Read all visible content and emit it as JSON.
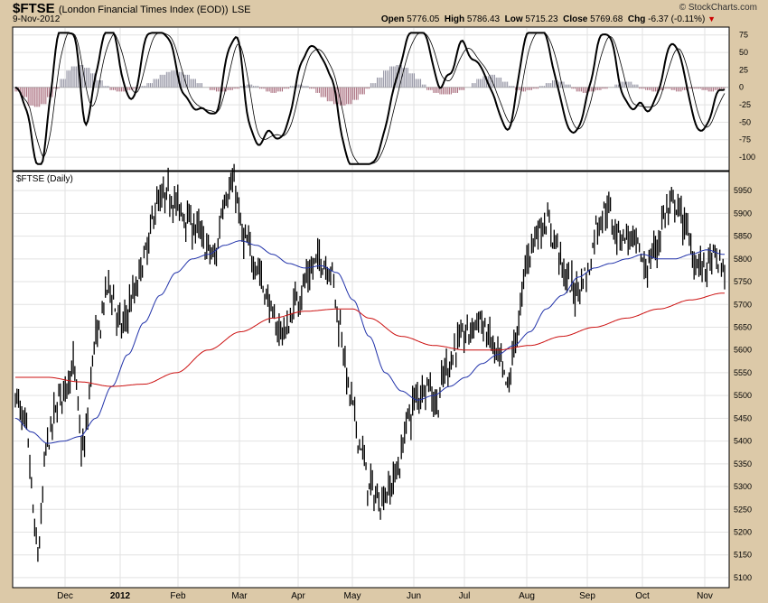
{
  "header": {
    "symbol": "$FTSE",
    "name": "(London Financial Times Index (EOD))",
    "exchange": "LSE",
    "date": "9-Nov-2012",
    "open_label": "Open",
    "open_value": "5776.05",
    "high_label": "High",
    "high_value": "5786.43",
    "low_label": "Low",
    "low_value": "5715.23",
    "close_label": "Close",
    "close_value": "5769.68",
    "chg_label": "Chg",
    "chg_value": "-6.37 (-0.11%)",
    "brand": "© StockCharts.com"
  },
  "colors": {
    "background": "#dcc9a8",
    "panel": "#ffffff",
    "price_bars": "#000000",
    "ma50": "#2233aa",
    "ma200": "#cc1111",
    "hist_positive": "#8f8f9f",
    "hist_negative": "#a86c7c"
  },
  "chart_data": [
    {
      "type": "line",
      "panel": "indicator",
      "yticks": [
        75,
        50,
        25,
        0,
        -25,
        -50,
        -75,
        -100
      ],
      "ylim": [
        -118,
        85
      ],
      "grid": true,
      "series": [],
      "histogram": [
        -6,
        -14,
        -26,
        -28,
        -24,
        -14,
        -2,
        12,
        24,
        30,
        32,
        28,
        20,
        10,
        2,
        -4,
        -6,
        -6,
        -4,
        -2,
        2,
        6,
        12,
        18,
        22,
        24,
        22,
        18,
        12,
        6,
        0,
        -4,
        -6,
        -6,
        -4,
        -2,
        2,
        4,
        2,
        -2,
        -6,
        -8,
        -6,
        -2,
        2,
        4,
        2,
        -2,
        -8,
        -14,
        -20,
        -24,
        -26,
        -24,
        -18,
        -10,
        -2,
        6,
        14,
        24,
        30,
        32,
        28,
        20,
        12,
        4,
        -4,
        -8,
        -10,
        -10,
        -8,
        -4,
        0,
        6,
        12,
        16,
        18,
        14,
        8,
        2,
        -4,
        -6,
        -4,
        -2,
        2,
        6,
        10,
        8,
        4,
        -2,
        -6,
        -8,
        -6,
        -4,
        -2,
        0,
        4,
        8,
        8,
        4,
        -2,
        -4,
        -6,
        -4,
        -2,
        -4,
        -6,
        -4,
        -2,
        -2,
        -4,
        -6,
        -4,
        -2
      ]
    },
    {
      "type": "bar",
      "panel": "price",
      "title": "$FTSE (Daily)",
      "x": [
        "Dec",
        "2012",
        "Feb",
        "Mar",
        "Apr",
        "May",
        "Jun",
        "Jul",
        "Aug",
        "Sep",
        "Oct",
        "Nov"
      ],
      "yticks": [
        5950,
        5900,
        5850,
        5800,
        5750,
        5700,
        5650,
        5600,
        5550,
        5500,
        5450,
        5400,
        5350,
        5300,
        5250,
        5200,
        5150,
        5100
      ],
      "ylim": [
        5080,
        5990
      ],
      "grid": true,
      "series": [
        {
          "anchors": [
            [
              0,
              5500
            ],
            [
              6,
              5430
            ],
            [
              14,
              5160
            ],
            [
              20,
              5400
            ],
            [
              28,
              5500
            ],
            [
              36,
              5560
            ],
            [
              42,
              5380
            ],
            [
              50,
              5620
            ],
            [
              58,
              5740
            ],
            [
              66,
              5650
            ],
            [
              74,
              5720
            ],
            [
              80,
              5800
            ],
            [
              88,
              5920
            ],
            [
              96,
              5940
            ],
            [
              104,
              5900
            ],
            [
              112,
              5870
            ],
            [
              120,
              5820
            ],
            [
              124,
              5800
            ],
            [
              130,
              5940
            ],
            [
              136,
              5960
            ],
            [
              142,
              5840
            ],
            [
              150,
              5790
            ],
            [
              156,
              5720
            ],
            [
              162,
              5650
            ],
            [
              168,
              5640
            ],
            [
              176,
              5720
            ],
            [
              182,
              5760
            ],
            [
              188,
              5800
            ],
            [
              196,
              5780
            ],
            [
              202,
              5650
            ],
            [
              208,
              5500
            ],
            [
              214,
              5400
            ],
            [
              220,
              5300
            ],
            [
              226,
              5270
            ],
            [
              232,
              5290
            ],
            [
              238,
              5340
            ],
            [
              244,
              5450
            ],
            [
              250,
              5500
            ],
            [
              256,
              5530
            ],
            [
              262,
              5480
            ],
            [
              268,
              5560
            ],
            [
              276,
              5620
            ],
            [
              282,
              5640
            ],
            [
              288,
              5670
            ],
            [
              294,
              5630
            ],
            [
              300,
              5580
            ],
            [
              306,
              5520
            ],
            [
              312,
              5640
            ],
            [
              318,
              5800
            ],
            [
              324,
              5860
            ],
            [
              330,
              5880
            ],
            [
              336,
              5840
            ],
            [
              342,
              5760
            ],
            [
              348,
              5730
            ],
            [
              356,
              5770
            ],
            [
              362,
              5880
            ],
            [
              368,
              5910
            ],
            [
              374,
              5860
            ],
            [
              380,
              5850
            ],
            [
              386,
              5830
            ],
            [
              392,
              5780
            ],
            [
              398,
              5820
            ],
            [
              404,
              5900
            ],
            [
              410,
              5920
            ],
            [
              416,
              5880
            ],
            [
              422,
              5800
            ],
            [
              428,
              5780
            ],
            [
              434,
              5800
            ],
            [
              440,
              5780
            ]
          ]
        },
        {
          "anchors": [
            [
              0,
              5450
            ],
            [
              10,
              5420
            ],
            [
              20,
              5395
            ],
            [
              30,
              5400
            ],
            [
              40,
              5410
            ],
            [
              50,
              5450
            ],
            [
              60,
              5520
            ],
            [
              70,
              5590
            ],
            [
              80,
              5660
            ],
            [
              90,
              5720
            ],
            [
              100,
              5770
            ],
            [
              110,
              5800
            ],
            [
              120,
              5810
            ],
            [
              130,
              5830
            ],
            [
              140,
              5840
            ],
            [
              150,
              5830
            ],
            [
              160,
              5810
            ],
            [
              170,
              5790
            ],
            [
              180,
              5780
            ],
            [
              190,
              5785
            ],
            [
              200,
              5770
            ],
            [
              210,
              5710
            ],
            [
              220,
              5630
            ],
            [
              230,
              5550
            ],
            [
              240,
              5510
            ],
            [
              250,
              5490
            ],
            [
              260,
              5500
            ],
            [
              270,
              5520
            ],
            [
              280,
              5540
            ],
            [
              290,
              5570
            ],
            [
              300,
              5590
            ],
            [
              310,
              5610
            ],
            [
              320,
              5640
            ],
            [
              330,
              5690
            ],
            [
              340,
              5720
            ],
            [
              350,
              5760
            ],
            [
              360,
              5780
            ],
            [
              370,
              5790
            ],
            [
              380,
              5800
            ],
            [
              390,
              5810
            ],
            [
              400,
              5800
            ],
            [
              410,
              5800
            ],
            [
              420,
              5810
            ],
            [
              430,
              5820
            ],
            [
              440,
              5810
            ]
          ]
        },
        {
          "anchors": [
            [
              0,
              5540
            ],
            [
              20,
              5540
            ],
            [
              40,
              5530
            ],
            [
              60,
              5520
            ],
            [
              80,
              5525
            ],
            [
              100,
              5550
            ],
            [
              120,
              5600
            ],
            [
              140,
              5640
            ],
            [
              160,
              5670
            ],
            [
              180,
              5685
            ],
            [
              200,
              5690
            ],
            [
              210,
              5690
            ],
            [
              220,
              5670
            ],
            [
              240,
              5630
            ],
            [
              260,
              5610
            ],
            [
              280,
              5600
            ],
            [
              300,
              5600
            ],
            [
              320,
              5610
            ],
            [
              340,
              5630
            ],
            [
              360,
              5650
            ],
            [
              380,
              5670
            ],
            [
              400,
              5690
            ],
            [
              420,
              5710
            ],
            [
              440,
              5725
            ]
          ]
        }
      ]
    }
  ]
}
